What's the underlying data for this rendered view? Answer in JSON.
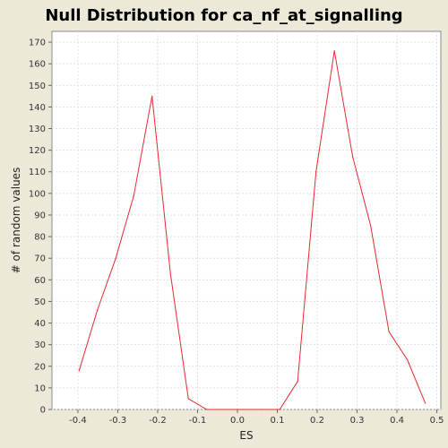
{
  "chart_data": {
    "type": "line",
    "title": "Null Distribution for ca_nf_at_signalling",
    "xlabel": "ES",
    "ylabel": "# of random values",
    "xlim": [
      -0.465,
      0.51
    ],
    "ylim": [
      0,
      175
    ],
    "x_ticks": [
      -0.4,
      -0.3,
      -0.2,
      -0.1,
      0.0,
      0.1,
      0.2,
      0.3,
      0.4,
      0.5
    ],
    "x_tick_labels": [
      "-0.4",
      "-0.3",
      "-0.2",
      "-0.1",
      "0.0",
      "0.1",
      "0.2",
      "0.3",
      "0.4",
      "0.5"
    ],
    "y_ticks": [
      0,
      10,
      20,
      30,
      40,
      50,
      60,
      70,
      80,
      90,
      100,
      110,
      120,
      130,
      140,
      150,
      160,
      170
    ],
    "y_tick_labels": [
      "0",
      "10",
      "20",
      "30",
      "40",
      "50",
      "60",
      "70",
      "80",
      "90",
      "100",
      "110",
      "120",
      "130",
      "140",
      "150",
      "160",
      "170"
    ],
    "grid": true,
    "series": [
      {
        "color": "#e8272f",
        "x": [
          -0.397,
          -0.351,
          -0.305,
          -0.26,
          -0.214,
          -0.168,
          -0.123,
          -0.077,
          -0.031,
          0.014,
          0.06,
          0.106,
          0.151,
          0.197,
          0.243,
          0.289,
          0.334,
          0.38,
          0.426,
          0.471
        ],
        "y": [
          18,
          46,
          70,
          99,
          145,
          63,
          5,
          0,
          0,
          0,
          0,
          0,
          13,
          110,
          166,
          117,
          85,
          36,
          23,
          3
        ]
      }
    ]
  }
}
